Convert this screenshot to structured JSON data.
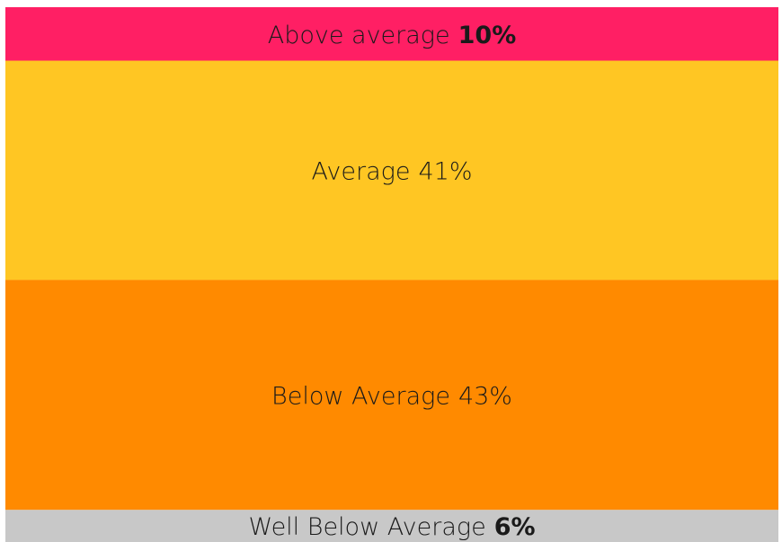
{
  "chart_data": {
    "type": "stacked-bar",
    "categories": [
      "Above average",
      "Average",
      "Below Average",
      "Well Below Average"
    ],
    "values": [
      10,
      41,
      43,
      6
    ],
    "value_labels": [
      "10%",
      "41%",
      "43%",
      "6%"
    ],
    "colors": [
      "#ff1f64",
      "#ffc623",
      "#ff8a00",
      "#c8c8c8"
    ],
    "bold_values": [
      true,
      false,
      false,
      true
    ],
    "ylim": [
      0,
      100
    ]
  }
}
